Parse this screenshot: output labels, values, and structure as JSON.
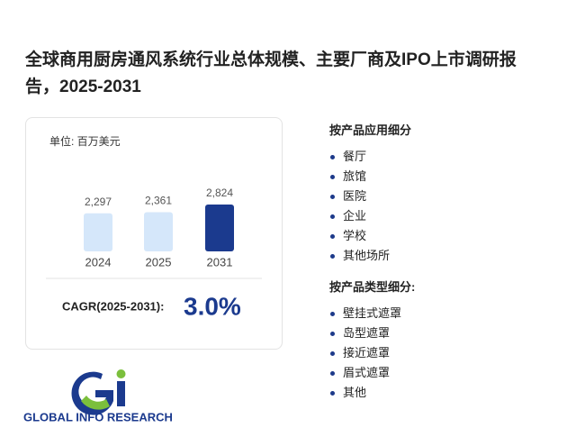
{
  "title": "全球商用厨房通风系统行业总体规模、主要厂商及IPO上市调研报告，2025-2031",
  "chart_data": {
    "type": "bar",
    "subtitle": "单位: 百万美元",
    "categories": [
      "2024",
      "2025",
      "2031"
    ],
    "values": [
      2297,
      2361,
      2824
    ],
    "value_labels": [
      "2,297",
      "2,361",
      "2,824"
    ],
    "colors": [
      "#d5e7fa",
      "#d5e7fa",
      "#1b3a8e"
    ]
  },
  "cagr": {
    "label": "CAGR(2025-2031):",
    "value": "3.0%"
  },
  "segments": [
    {
      "heading": "按产品应用细分",
      "items": [
        "餐厅",
        "旅馆",
        "医院",
        "企业",
        "学校",
        "其他场所"
      ]
    },
    {
      "heading": "按产品类型细分:",
      "items": [
        "壁挂式遮罩",
        "岛型遮罩",
        "接近遮罩",
        "眉式遮罩",
        "其他"
      ]
    }
  ],
  "logo": "GLOBAL INFO RESEARCH"
}
